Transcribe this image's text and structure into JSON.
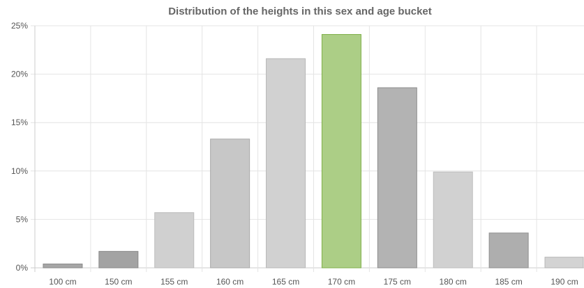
{
  "chart_data": {
    "type": "bar",
    "title": "Distribution of the heights in this sex and age bucket",
    "xlabel": "",
    "ylabel": "",
    "categories": [
      "100 cm",
      "150 cm",
      "155 cm",
      "160 cm",
      "165 cm",
      "170 cm",
      "175 cm",
      "180 cm",
      "185 cm",
      "190 cm"
    ],
    "values": [
      0.4,
      1.7,
      5.7,
      13.3,
      21.6,
      24.1,
      18.6,
      9.9,
      3.6,
      1.1
    ],
    "ylim": [
      0,
      25
    ],
    "yticks": [
      "0%",
      "5%",
      "10%",
      "15%",
      "20%",
      "25%"
    ],
    "y_unit": "%",
    "highlight_index": 5,
    "grid": true,
    "legend": "none",
    "colors": {
      "bars": [
        "#a6a6a6",
        "#a3a3a3",
        "#d0d0d0",
        "#c7c7c7",
        "#d1d1d1",
        "#acce86",
        "#b3b3b3",
        "#d1d1d1",
        "#aeaeae",
        "#d3d3d3"
      ],
      "borders": [
        "#8a8a8a",
        "#888888",
        "#bcbcbc",
        "#a9a9a9",
        "#b8b8b8",
        "#7fb049",
        "#8e8e8e",
        "#bdbdbd",
        "#909090",
        "#b6b6b6"
      ],
      "grid": "#e4e4e4",
      "axis": "#cccccc"
    }
  }
}
